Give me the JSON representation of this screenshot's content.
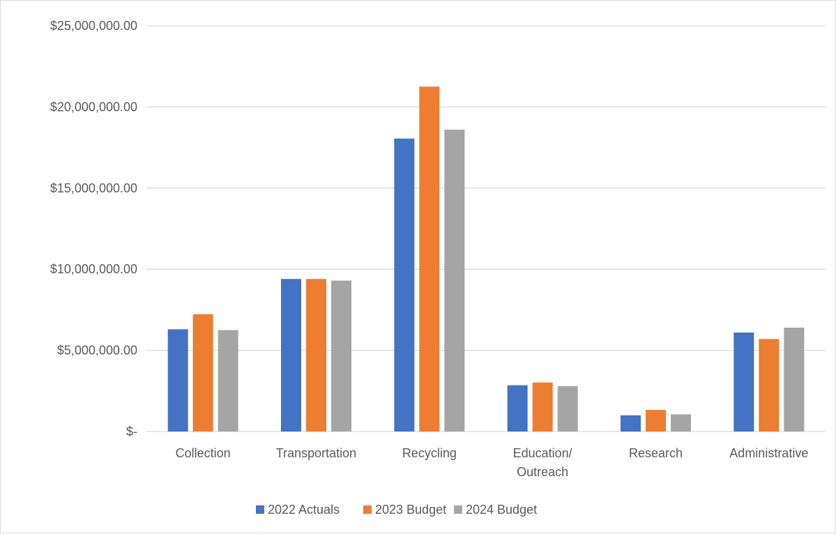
{
  "chart_data": {
    "type": "bar",
    "title": "",
    "xlabel": "",
    "ylabel": "",
    "categories": [
      [
        "Collection"
      ],
      [
        "Transportation"
      ],
      [
        "Recycling"
      ],
      [
        "Education/",
        "Outreach"
      ],
      [
        "Research"
      ],
      [
        "Administrative"
      ]
    ],
    "series": [
      {
        "name": "2022 Actuals",
        "color": "#4472c4",
        "values": [
          6300000,
          9400000,
          18050000,
          2850000,
          1000000,
          6100000
        ]
      },
      {
        "name": "2023 Budget",
        "color": "#ed7d31",
        "values": [
          7230000,
          9400000,
          21250000,
          3020000,
          1330000,
          5700000
        ]
      },
      {
        "name": "2024 Budget",
        "color": "#a5a5a5",
        "values": [
          6250000,
          9300000,
          18600000,
          2800000,
          1060000,
          6400000
        ]
      }
    ],
    "ylim": [
      0,
      25000000
    ],
    "yticks": [
      {
        "value": 0,
        "label": "$-"
      },
      {
        "value": 5000000,
        "label": "$5,000,000.00"
      },
      {
        "value": 10000000,
        "label": "$10,000,000.00"
      },
      {
        "value": 15000000,
        "label": "$15,000,000.00"
      },
      {
        "value": 20000000,
        "label": "$20,000,000.00"
      },
      {
        "value": 25000000,
        "label": "$25,000,000.00"
      }
    ],
    "grid": true,
    "legend": "bottom",
    "gridline_color": "#d9d9d9"
  }
}
